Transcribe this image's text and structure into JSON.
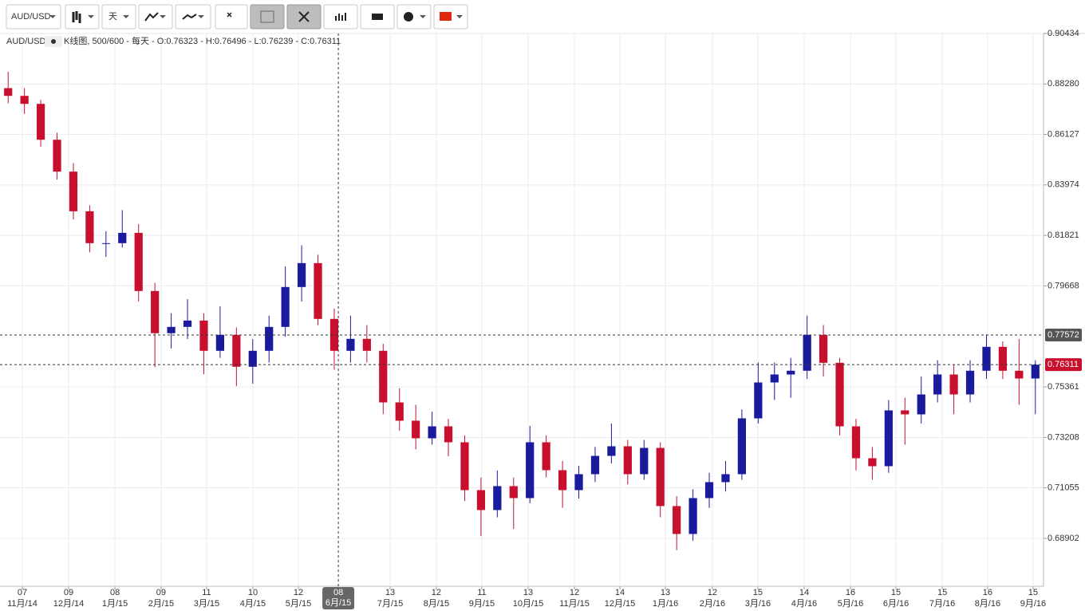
{
  "toolbar": {
    "symbol": "AUD/USD",
    "period": "天"
  },
  "chart_data": {
    "type": "candlestick",
    "symbol": "AUD/USD",
    "info": "K线图, 500/600 - 每天 - O:0.76323 - H:0.76496 - L:0.76239 - C:0.76311",
    "up_color": "#1a1a9c",
    "down_color": "#c8102e",
    "grid": true,
    "xlim": [
      0,
      64
    ],
    "ylim": [
      0.6686,
      0.9043
    ],
    "yticks": [
      {
        "value": 0.90434,
        "label": "0.90434"
      },
      {
        "value": 0.8828,
        "label": "0.88280"
      },
      {
        "value": 0.86127,
        "label": "0.86127"
      },
      {
        "value": 0.83974,
        "label": "0.83974"
      },
      {
        "value": 0.81821,
        "label": "0.81821"
      },
      {
        "value": 0.79668,
        "label": "0.79668"
      },
      {
        "value": 0.75361,
        "label": "0.75361"
      },
      {
        "value": 0.73208,
        "label": "0.73208"
      },
      {
        "value": 0.71055,
        "label": "0.71055"
      },
      {
        "value": 0.68902,
        "label": "0.68902"
      }
    ],
    "xticks": [
      {
        "value": 1.37,
        "day": "07",
        "month": "11月/14"
      },
      {
        "value": 4.21,
        "day": "09",
        "month": "12月/14"
      },
      {
        "value": 7.05,
        "day": "08",
        "month": "1月/15"
      },
      {
        "value": 9.88,
        "day": "09",
        "month": "2月/15"
      },
      {
        "value": 12.67,
        "day": "11",
        "month": "3月/15"
      },
      {
        "value": 15.51,
        "day": "10",
        "month": "4月/15"
      },
      {
        "value": 18.3,
        "day": "12",
        "month": "5月/15"
      },
      {
        "value": 23.93,
        "day": "13",
        "month": "7月/15"
      },
      {
        "value": 26.76,
        "day": "12",
        "month": "8月/15"
      },
      {
        "value": 29.55,
        "day": "11",
        "month": "9月/15"
      },
      {
        "value": 32.39,
        "day": "13",
        "month": "10月/15"
      },
      {
        "value": 35.23,
        "day": "12",
        "month": "11月/15"
      },
      {
        "value": 38.02,
        "day": "14",
        "month": "12月/15"
      },
      {
        "value": 40.81,
        "day": "13",
        "month": "1月/16"
      },
      {
        "value": 43.69,
        "day": "12",
        "month": "2月/16"
      },
      {
        "value": 46.48,
        "day": "15",
        "month": "3月/16"
      },
      {
        "value": 49.32,
        "day": "14",
        "month": "4月/16"
      },
      {
        "value": 52.16,
        "day": "16",
        "month": "5月/16"
      },
      {
        "value": 54.95,
        "day": "15",
        "month": "6月/16"
      },
      {
        "value": 57.79,
        "day": "15",
        "month": "7月/16"
      },
      {
        "value": 60.57,
        "day": "16",
        "month": "8月/16"
      },
      {
        "value": 63.36,
        "day": "15",
        "month": "9月/16"
      }
    ],
    "crosshair": {
      "x": 20.75,
      "day": "08",
      "month": "6月/15",
      "price": 0.77572
    },
    "last_price": 0.76311,
    "open": [
      0.881,
      0.8777,
      0.8743,
      0.859,
      0.8454,
      0.8285,
      0.8149,
      0.8149,
      0.8193,
      0.7945,
      0.7765,
      0.7792,
      0.7819,
      0.769,
      0.7758,
      0.7622,
      0.769,
      0.7792,
      0.7962,
      0.8064,
      0.7826,
      0.769,
      0.7741,
      0.769,
      0.747,
      0.7392,
      0.7317,
      0.7368,
      0.73,
      0.7096,
      0.7011,
      0.7113,
      0.7062,
      0.73,
      0.7181,
      0.7096,
      0.7164,
      0.7242,
      0.7283,
      0.7164,
      0.7276,
      0.7028,
      0.6909,
      0.7062,
      0.713,
      0.7164,
      0.7402,
      0.7555,
      0.7589,
      0.7605,
      0.7758,
      0.7639,
      0.7368,
      0.7232,
      0.7198,
      0.7436,
      0.7419,
      0.7504,
      0.7589,
      0.7504,
      0.7605,
      0.7707,
      0.7605,
      0.7572
    ],
    "high": [
      0.888,
      0.881,
      0.876,
      0.862,
      0.849,
      0.831,
      0.82,
      0.829,
      0.823,
      0.798,
      0.785,
      0.791,
      0.785,
      0.788,
      0.779,
      0.774,
      0.784,
      0.805,
      0.814,
      0.81,
      0.787,
      0.784,
      0.78,
      0.772,
      0.753,
      0.746,
      0.743,
      0.74,
      0.733,
      0.715,
      0.718,
      0.715,
      0.737,
      0.733,
      0.722,
      0.72,
      0.728,
      0.738,
      0.731,
      0.731,
      0.73,
      0.707,
      0.71,
      0.717,
      0.722,
      0.744,
      0.764,
      0.764,
      0.766,
      0.784,
      0.78,
      0.766,
      0.74,
      0.728,
      0.748,
      0.749,
      0.758,
      0.765,
      0.763,
      0.765,
      0.776,
      0.773,
      0.774,
      0.765
    ],
    "low": [
      0.8745,
      0.87,
      0.856,
      0.842,
      0.825,
      0.811,
      0.809,
      0.813,
      0.79,
      0.762,
      0.77,
      0.774,
      0.759,
      0.766,
      0.754,
      0.755,
      0.764,
      0.775,
      0.79,
      0.78,
      0.761,
      0.764,
      0.764,
      0.742,
      0.735,
      0.727,
      0.729,
      0.724,
      0.705,
      0.69,
      0.698,
      0.693,
      0.704,
      0.715,
      0.702,
      0.706,
      0.713,
      0.721,
      0.712,
      0.714,
      0.698,
      0.684,
      0.688,
      0.702,
      0.709,
      0.714,
      0.738,
      0.748,
      0.749,
      0.757,
      0.758,
      0.733,
      0.718,
      0.714,
      0.717,
      0.729,
      0.738,
      0.747,
      0.742,
      0.747,
      0.757,
      0.757,
      0.746,
      0.742
    ],
    "close": [
      0.8777,
      0.8743,
      0.859,
      0.8454,
      0.8285,
      0.8149,
      0.8149,
      0.8193,
      0.7945,
      0.7765,
      0.7792,
      0.7819,
      0.769,
      0.7758,
      0.7622,
      0.769,
      0.7792,
      0.7962,
      0.8064,
      0.7826,
      0.769,
      0.7741,
      0.769,
      0.747,
      0.7392,
      0.7317,
      0.7368,
      0.73,
      0.7096,
      0.7011,
      0.7113,
      0.7062,
      0.73,
      0.7181,
      0.7096,
      0.7164,
      0.7242,
      0.7283,
      0.7164,
      0.7276,
      0.7028,
      0.6909,
      0.7062,
      0.713,
      0.7164,
      0.7402,
      0.7555,
      0.7589,
      0.7605,
      0.7758,
      0.7639,
      0.7368,
      0.7232,
      0.7198,
      0.7436,
      0.7419,
      0.7504,
      0.7589,
      0.7504,
      0.7605,
      0.7707,
      0.7605,
      0.7572,
      0.7631
    ]
  }
}
